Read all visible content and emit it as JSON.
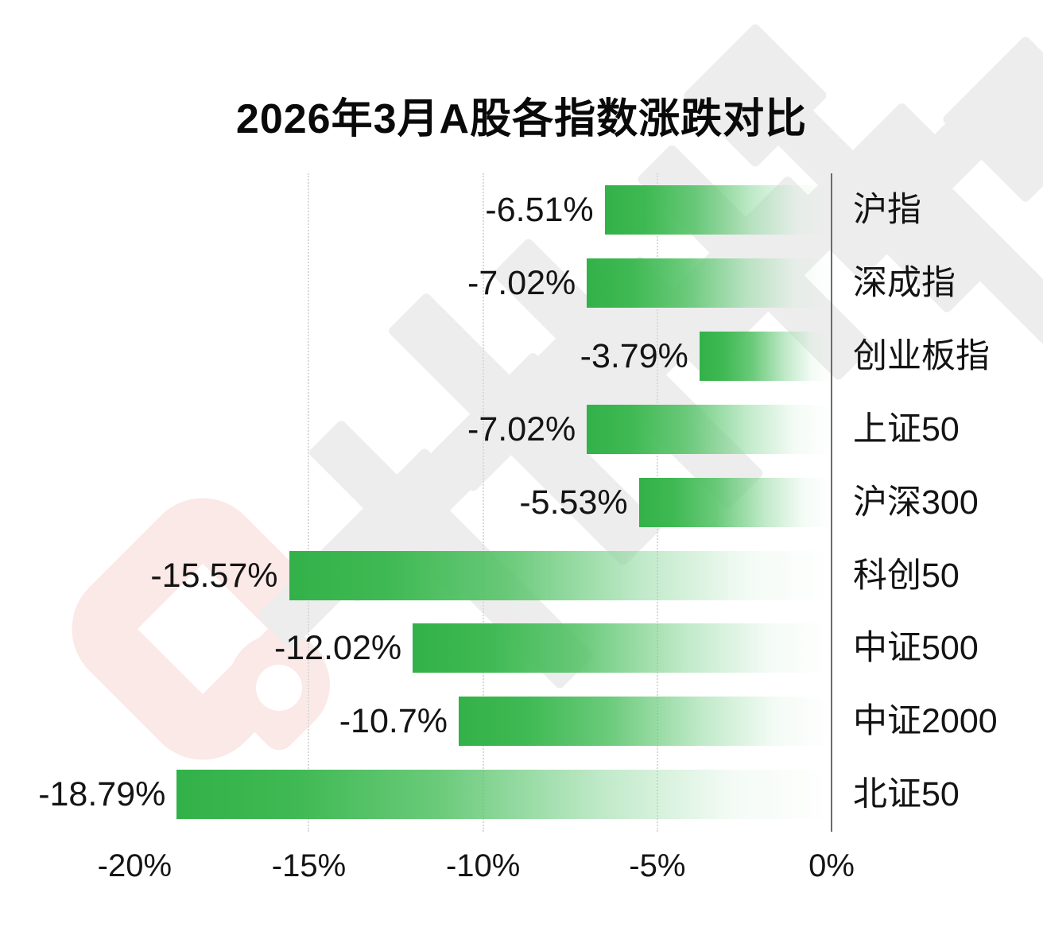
{
  "header": {
    "title": "2026年3月A股各指数涨跌对比"
  },
  "watermark": {
    "logo": "cailianshe-c-logo",
    "text": "财联社"
  },
  "chart_data": {
    "type": "bar",
    "orientation": "horizontal",
    "title": "2026年3月A股各指数涨跌对比",
    "categories": [
      "沪指",
      "深成指",
      "创业板指",
      "上证50",
      "沪深300",
      "科创50",
      "中证500",
      "中证2000",
      "北证50"
    ],
    "values": [
      -6.51,
      -7.02,
      -3.79,
      -7.02,
      -5.53,
      -15.57,
      -12.02,
      -10.7,
      -18.79
    ],
    "value_labels": [
      "-6.51%",
      "-7.02%",
      "-3.79%",
      "-7.02%",
      "-5.53%",
      "-15.57%",
      "-12.02%",
      "-10.7%",
      "-18.79%"
    ],
    "xlabel": "",
    "ylabel": "",
    "xlim": [
      -20.03,
      0
    ],
    "x_ticks": [
      "-20%",
      "-15%",
      "-10%",
      "-5%",
      "0%"
    ],
    "x_tick_values": [
      -20,
      -15,
      -10,
      -5,
      0
    ],
    "grid": "vertical-dotted-at-minus15-minus10-minus5",
    "legend": "none",
    "bar_color_solid": "#33b149",
    "bar_color_faded": "#ffffff00"
  },
  "colors": {
    "background": "#ffffff",
    "bar_green": "#33b149",
    "axis_line": "#6b6b6b",
    "gridline": "#d9d9d9",
    "text": "#141414",
    "watermark_pink": "#fbe9e7",
    "watermark_gray": "#ededed"
  }
}
